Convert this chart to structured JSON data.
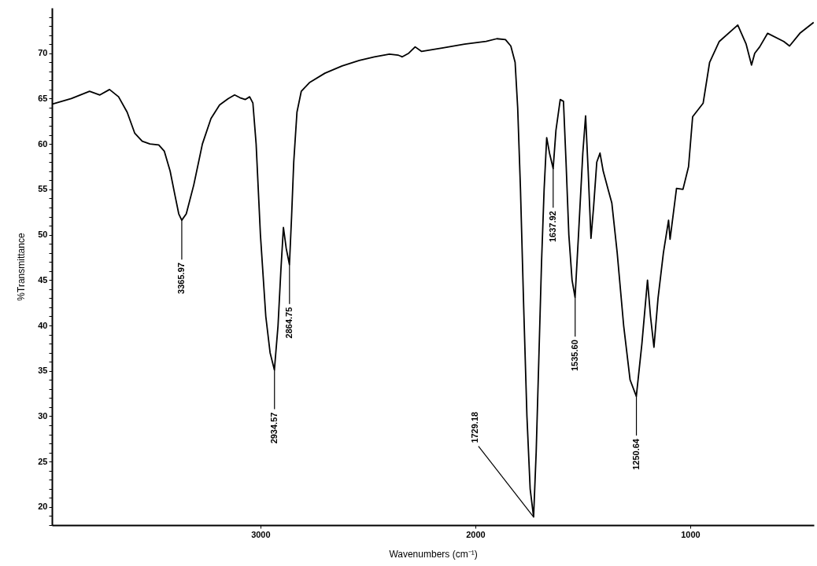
{
  "chart_data": {
    "type": "line",
    "xlabel": "Wavenumbers (cm⁻¹)",
    "ylabel": "%Transmittance",
    "xlim": [
      3970,
      425
    ],
    "ylim": [
      18,
      75
    ],
    "xticks": [
      3000,
      2000,
      1000
    ],
    "yticks": [
      {
        "value": 18,
        "label": null
      },
      {
        "value": 19,
        "label": null
      },
      20,
      {
        "value": 21,
        "label": null
      },
      {
        "value": 22,
        "label": null
      },
      {
        "value": 23,
        "label": null
      },
      {
        "value": 24,
        "label": null
      },
      25,
      {
        "value": 26,
        "label": null
      },
      {
        "value": 27,
        "label": null
      },
      {
        "value": 28,
        "label": null
      },
      {
        "value": 29,
        "label": null
      },
      30,
      {
        "value": 31,
        "label": null
      },
      {
        "value": 32,
        "label": null
      },
      {
        "value": 33,
        "label": null
      },
      {
        "value": 34,
        "label": null
      },
      35,
      {
        "value": 36,
        "label": null
      },
      {
        "value": 37,
        "label": null
      },
      {
        "value": 38,
        "label": null
      },
      {
        "value": 39,
        "label": null
      },
      40,
      {
        "value": 41,
        "label": null
      },
      {
        "value": 42,
        "label": null
      },
      {
        "value": 43,
        "label": null
      },
      {
        "value": 44,
        "label": null
      },
      45,
      {
        "value": 46,
        "label": null
      },
      {
        "value": 47,
        "label": null
      },
      {
        "value": 48,
        "label": null
      },
      {
        "value": 49,
        "label": null
      },
      50,
      {
        "value": 51,
        "label": null
      },
      {
        "value": 52,
        "label": null
      },
      {
        "value": 53,
        "label": null
      },
      {
        "value": 54,
        "label": null
      },
      55,
      {
        "value": 56,
        "label": null
      },
      {
        "value": 57,
        "label": null
      },
      {
        "value": 58,
        "label": null
      },
      {
        "value": 59,
        "label": null
      },
      60,
      {
        "value": 61,
        "label": null
      },
      {
        "value": 62,
        "label": null
      },
      {
        "value": 63,
        "label": null
      },
      {
        "value": 64,
        "label": null
      },
      65,
      {
        "value": 66,
        "label": null
      },
      {
        "value": 67,
        "label": null
      },
      {
        "value": 68,
        "label": null
      },
      {
        "value": 69,
        "label": null
      },
      70,
      {
        "value": 71,
        "label": null
      },
      {
        "value": 72,
        "label": null
      },
      {
        "value": 73,
        "label": null
      },
      {
        "value": 74,
        "label": null
      }
    ],
    "grid": false,
    "marker": "none",
    "line_style": "solid",
    "series": [
      {
        "color": "#000000",
        "x": [
          3968,
          3880,
          3795,
          3747,
          3702,
          3660,
          3620,
          3585,
          3550,
          3514,
          3473,
          3447,
          3420,
          3398,
          3380,
          3366,
          3345,
          3310,
          3270,
          3230,
          3190,
          3150,
          3120,
          3095,
          3070,
          3050,
          3035,
          3020,
          3000,
          2975,
          2955,
          2935,
          2918,
          2905,
          2893,
          2880,
          2865,
          2855,
          2845,
          2830,
          2810,
          2770,
          2700,
          2620,
          2540,
          2470,
          2400,
          2360,
          2340,
          2310,
          2280,
          2250,
          2150,
          2050,
          1950,
          1900,
          1860,
          1835,
          1815,
          1803,
          1790,
          1775,
          1760,
          1745,
          1729,
          1717,
          1705,
          1692,
          1680,
          1668,
          1655,
          1638,
          1625,
          1605,
          1590,
          1578,
          1565,
          1550,
          1536,
          1520,
          1500,
          1487,
          1475,
          1462,
          1450,
          1435,
          1420,
          1405,
          1380,
          1365,
          1340,
          1310,
          1280,
          1251,
          1225,
          1199,
          1185,
          1169,
          1150,
          1125,
          1101,
          1094,
          1064,
          1034,
          1008,
          989,
          940,
          910,
          865,
          779,
          740,
          715,
          700,
          677,
          640,
          565,
          538,
          490,
          426
        ],
        "values": [
          64.4,
          65.0,
          65.8,
          65.4,
          66.0,
          65.2,
          63.5,
          61.2,
          60.3,
          60.0,
          59.9,
          59.2,
          57.0,
          54.4,
          52.3,
          51.6,
          52.3,
          55.5,
          60.0,
          62.8,
          64.3,
          65.0,
          65.4,
          65.1,
          64.9,
          65.2,
          64.5,
          60.0,
          50.0,
          41.0,
          37.0,
          35.1,
          40.0,
          46.0,
          50.8,
          48.5,
          46.7,
          52.0,
          58.0,
          63.5,
          65.8,
          66.8,
          67.8,
          68.6,
          69.2,
          69.6,
          69.9,
          69.8,
          69.6,
          70.0,
          70.7,
          70.2,
          70.6,
          71.0,
          71.3,
          71.6,
          71.5,
          70.8,
          69.0,
          64.0,
          55.0,
          42.0,
          30.0,
          22.0,
          18.9,
          26.0,
          36.0,
          47.0,
          55.0,
          60.7,
          59.0,
          57.3,
          61.5,
          64.9,
          64.7,
          58.0,
          50.0,
          45.0,
          43.1,
          50.0,
          59.0,
          63.1,
          57.0,
          49.6,
          53.0,
          58.0,
          59.0,
          57.0,
          54.8,
          53.5,
          48.0,
          40.0,
          34.0,
          32.2,
          38.0,
          45.0,
          41.0,
          37.6,
          43.0,
          48.0,
          51.6,
          49.5,
          55.1,
          55.0,
          57.5,
          63.0,
          64.5,
          69.0,
          71.3,
          73.1,
          71.0,
          68.7,
          70.0,
          70.7,
          72.2,
          71.3,
          70.8,
          72.2,
          73.4
        ]
      }
    ],
    "annotations": [
      {
        "text": "3365.97",
        "x": 3365.97,
        "y": 51.6
      },
      {
        "text": "2934.57",
        "x": 2934.57,
        "y": 35.1
      },
      {
        "text": "2864.75",
        "x": 2864.75,
        "y": 46.7
      },
      {
        "text": "1729.18",
        "x": 1729.18,
        "y": 18.9
      },
      {
        "text": "1637.92",
        "x": 1637.92,
        "y": 57.3
      },
      {
        "text": "1535.60",
        "x": 1535.6,
        "y": 43.1
      },
      {
        "text": "1250.64",
        "x": 1250.64,
        "y": 32.2
      }
    ]
  }
}
